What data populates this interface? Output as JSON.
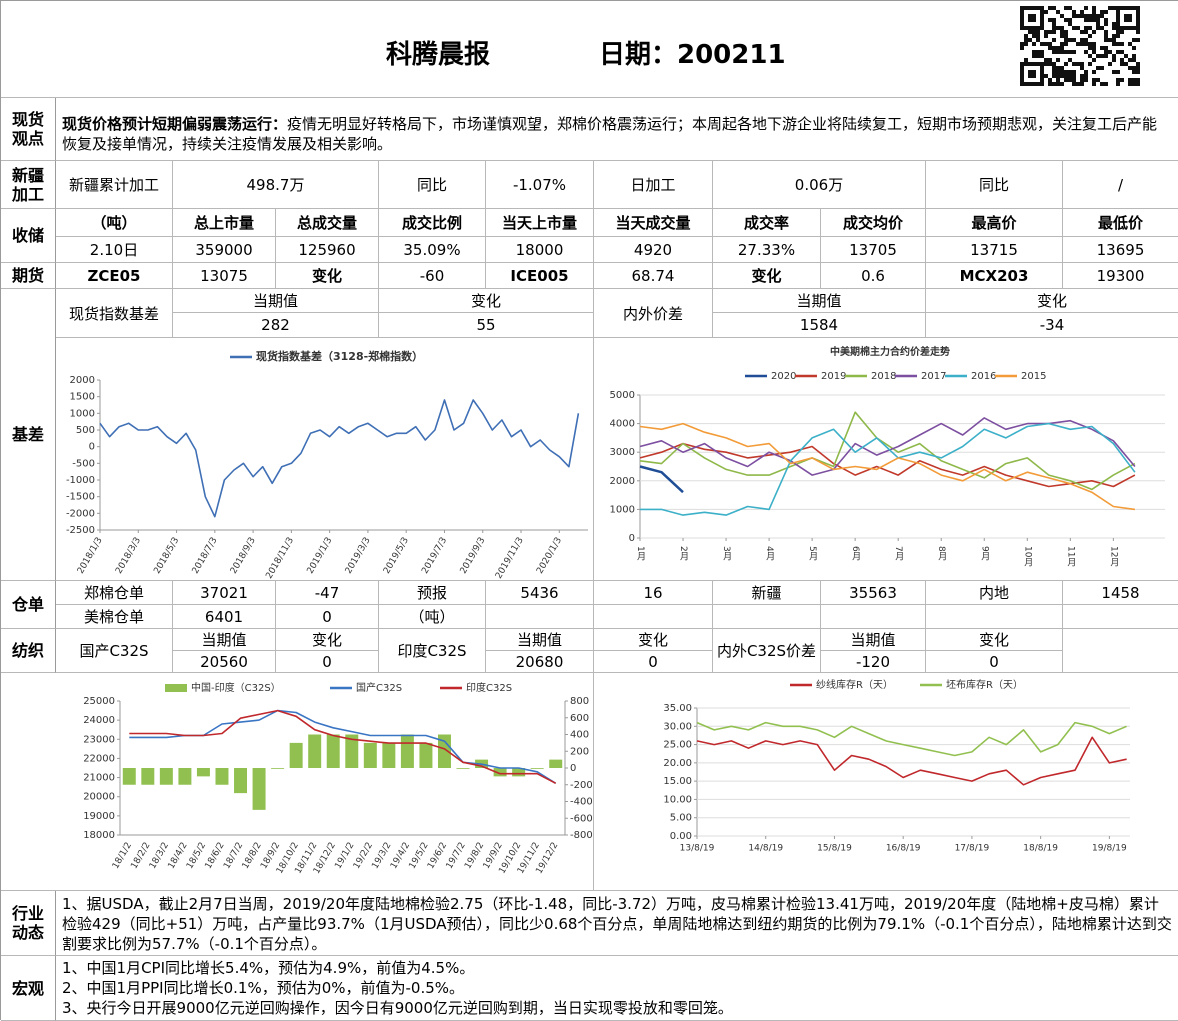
{
  "header": {
    "title": "科腾晨报",
    "date": "日期：200211"
  },
  "spot_view": {
    "label": "现货观点",
    "headline": "现货价格预计短期偏弱震荡运行：",
    "text": "疫情无明显好转格局下，市场谨慎观望，郑棉价格震荡运行；本周起各地下游企业将陆续复工，短期市场预期悲观，关注复工后产能恢复及接单情况，持续关注疫情发展及相关影响。"
  },
  "xinjiang": {
    "label": "新疆加工",
    "cells": [
      "新疆累计加工",
      "498.7万",
      "同比",
      "-1.07%",
      "日加工",
      "0.06万",
      "同比",
      "/"
    ]
  },
  "reserve": {
    "label": "收储",
    "header": [
      "（吨）",
      "总上市量",
      "总成交量",
      "成交比例",
      "当天上市量",
      "当天成交量",
      "成交率",
      "成交均价",
      "最高价",
      "最低价"
    ],
    "row": [
      "2.10日",
      "359000",
      "125960",
      "35.09%",
      "18000",
      "4920",
      "27.33%",
      "13705",
      "13715",
      "13695"
    ]
  },
  "futures": {
    "label": "期货",
    "cells": [
      "ZCE05",
      "13075",
      "变化",
      "-60",
      "ICE005",
      "68.74",
      "变化",
      "0.6",
      "MCX203",
      "19300"
    ]
  },
  "basis": {
    "label": "基差",
    "spot_basis": "现货指数基差",
    "spot_current": "当期值",
    "spot_value": "282",
    "spot_change": "变化",
    "spot_change_value": "55",
    "inner_outer": "内外价差",
    "io_current": "当期值",
    "io_value": "1584",
    "io_change": "变化",
    "io_change_value": "-34"
  },
  "warehouse": {
    "label": "仓单",
    "rows": [
      [
        "郑棉仓单",
        "37021",
        "-47",
        "预报",
        "5436",
        "16",
        "新疆",
        "35563",
        "内地",
        "1458"
      ],
      [
        "美棉仓单",
        "6401",
        "0",
        "（吨）"
      ]
    ]
  },
  "textile": {
    "label": "纺织",
    "cells": [
      "国产C32S",
      "当期值",
      "20560",
      "变化",
      "0",
      "印度C32S",
      "当期值",
      "20680",
      "变化",
      "0",
      "内外C32S价差",
      "当期值",
      "-120",
      "变化",
      "0"
    ]
  },
  "industry": {
    "label": "行业动态",
    "text": "1、据USDA，截止2月7日当周，2019/20年度陆地棉检验2.75（环比-1.48，同比-3.72）万吨，皮马棉累计检验13.41万吨，2019/20年度（陆地棉+皮马棉）累计检验429（同比+51）万吨，占产量比93.7%（1月USDA预估），同比少0.68个百分点，单周陆地棉达到纽约期货的比例为79.1%（-0.1个百分点），陆地棉累计达到交割要求比例为57.7%（-0.1个百分点）。"
  },
  "macro": {
    "label": "宏观",
    "items": [
      "1、中国1月CPI同比增长5.4%，预估为4.9%，前值为4.5%。",
      "2、中国1月PPI同比增长0.1%，预估为0%，前值为-0.5%。",
      "3、央行今日开展9000亿元逆回购操作，因今日有9000亿元逆回购到期，当日实现零投放和零回笼。"
    ]
  },
  "chart_data": [
    {
      "type": "line",
      "grid": false,
      "x": [
        0,
        0.5,
        1,
        1.5,
        2,
        2.5,
        3,
        3.5,
        4,
        4.5,
        5,
        5.5,
        6,
        6.5,
        7,
        7.5,
        8,
        8.5,
        9,
        9.5,
        10,
        10.5,
        11,
        11.5,
        12,
        12.5,
        13,
        13.5,
        14,
        14.5,
        15,
        15.5,
        16,
        16.5,
        17,
        17.5,
        18,
        18.5,
        19,
        19.5,
        20,
        20.5,
        21,
        21.5,
        22,
        22.5,
        23,
        23.5,
        24,
        24.5,
        25
      ],
      "series": [
        {
          "name": "现货指数基差（3128-郑棉指数）",
          "color": "#3f6fb5",
          "values": [
            700,
            300,
            600,
            700,
            500,
            500,
            600,
            300,
            100,
            400,
            -100,
            -1500,
            -2100,
            -1000,
            -700,
            -500,
            -900,
            -600,
            -1100,
            -600,
            -500,
            -200,
            400,
            500,
            300,
            600,
            400,
            600,
            700,
            500,
            300,
            400,
            400,
            600,
            200,
            500,
            1400,
            500,
            700,
            1400,
            1000,
            500,
            800,
            300,
            500,
            0,
            200,
            -100,
            -300,
            -600,
            1000
          ]
        }
      ],
      "xlim": [
        0,
        25.5
      ],
      "xticks": [
        {
          "value": 0,
          "label": "2018/1/3"
        },
        {
          "value": 2,
          "label": "2018/3/3"
        },
        {
          "value": 4,
          "label": "2018/5/3"
        },
        {
          "value": 6,
          "label": "2018/7/3"
        },
        {
          "value": 8,
          "label": "2018/9/3"
        },
        {
          "value": 10,
          "label": "2018/11/3"
        },
        {
          "value": 12,
          "label": "2019/1/3"
        },
        {
          "value": 14,
          "label": "2019/3/3"
        },
        {
          "value": 16,
          "label": "2019/5/3"
        },
        {
          "value": 18,
          "label": "2019/7/3"
        },
        {
          "value": 20,
          "label": "2019/9/3"
        },
        {
          "value": 22,
          "label": "2019/11/3"
        },
        {
          "value": 24,
          "label": "2020/1/3"
        }
      ],
      "ylim": [
        -2500,
        2000
      ],
      "yticks": [
        -2500,
        -2000,
        -1500,
        -1000,
        -500,
        0,
        500,
        1000,
        1500,
        2000
      ]
    },
    {
      "type": "line",
      "title": "中美期棉主力合约价差走势",
      "grid": true,
      "x": [
        1,
        1.5,
        2,
        2.5,
        3,
        3.5,
        4,
        4.5,
        5,
        5.5,
        6,
        6.5,
        7,
        7.5,
        8,
        8.5,
        9,
        9.5,
        10,
        10.5,
        11,
        11.5,
        12,
        12.5
      ],
      "series": [
        {
          "name": "2020",
          "color": "#1f4e96",
          "values": [
            2500,
            2300,
            1600,
            null,
            null,
            null,
            null,
            null,
            null,
            null,
            null,
            null,
            null,
            null,
            null,
            null,
            null,
            null,
            null,
            null,
            null,
            null,
            null,
            null
          ]
        },
        {
          "name": "2019",
          "color": "#c0392b",
          "values": [
            2800,
            3000,
            3300,
            3100,
            3000,
            2800,
            2900,
            3000,
            3200,
            2600,
            2200,
            2500,
            2200,
            2700,
            2400,
            2200,
            2500,
            2200,
            2000,
            1800,
            1900,
            2000,
            1800,
            2200
          ]
        },
        {
          "name": "2018",
          "color": "#8fb84a",
          "values": [
            2700,
            2600,
            3300,
            2800,
            2400,
            2200,
            2200,
            2500,
            2800,
            2500,
            4400,
            3500,
            3000,
            3300,
            2700,
            2400,
            2100,
            2600,
            2800,
            2200,
            2000,
            1700,
            2200,
            2600
          ]
        },
        {
          "name": "2017",
          "color": "#7d4fa0",
          "values": [
            3200,
            3400,
            3000,
            3300,
            2800,
            2500,
            3000,
            2700,
            2200,
            2400,
            3300,
            2900,
            3200,
            3600,
            4000,
            3600,
            4200,
            3800,
            4000,
            4000,
            4100,
            3800,
            3400,
            2500
          ]
        },
        {
          "name": "2016",
          "color": "#3cb0c8",
          "values": [
            1000,
            1000,
            800,
            900,
            800,
            1100,
            1000,
            2700,
            3500,
            3800,
            3000,
            3500,
            2800,
            3000,
            2800,
            3200,
            3800,
            3500,
            3900,
            4000,
            3800,
            3900,
            3300,
            2300
          ]
        },
        {
          "name": "2015",
          "color": "#f29b38",
          "values": [
            3900,
            3800,
            4000,
            3700,
            3500,
            3200,
            3300,
            2600,
            2800,
            2400,
            2500,
            2400,
            2800,
            2600,
            2200,
            2000,
            2400,
            2000,
            2300,
            2100,
            1900,
            1600,
            1100,
            1000
          ]
        }
      ],
      "xlim": [
        1,
        13.2
      ],
      "xticks": [
        {
          "value": 1,
          "label": "1月"
        },
        {
          "value": 2,
          "label": "2月"
        },
        {
          "value": 3,
          "label": "3月"
        },
        {
          "value": 4,
          "label": "4月"
        },
        {
          "value": 5,
          "label": "5月"
        },
        {
          "value": 6,
          "label": "6月"
        },
        {
          "value": 7,
          "label": "7月"
        },
        {
          "value": 8,
          "label": "8月"
        },
        {
          "value": 9,
          "label": "9月"
        },
        {
          "value": 10,
          "label": "10月"
        },
        {
          "value": 11,
          "label": "11月"
        },
        {
          "value": 12,
          "label": "12月"
        }
      ],
      "ylim": [
        0,
        5000
      ],
      "yticks": [
        0,
        1000,
        2000,
        3000,
        4000,
        5000
      ]
    },
    {
      "type": "bar",
      "grid": false,
      "categories": [
        "18/1/2",
        "18/2/2",
        "18/3/2",
        "18/4/2",
        "18/5/2",
        "18/6/2",
        "18/7/2",
        "18/8/2",
        "18/9/2",
        "18/10/2",
        "18/11/2",
        "18/12/2",
        "19/1/2",
        "19/2/2",
        "19/3/2",
        "19/4/2",
        "19/5/2",
        "19/6/2",
        "19/7/2",
        "19/8/2",
        "19/9/2",
        "19/10/2",
        "19/11/2",
        "19/12/2"
      ],
      "series": [
        {
          "name": "中国-印度（C32S）",
          "type": "bar",
          "axis": "y2",
          "color": "#92c050",
          "values": [
            -200,
            -200,
            -200,
            -200,
            -100,
            -200,
            -300,
            -500,
            0,
            300,
            400,
            400,
            400,
            300,
            300,
            400,
            300,
            400,
            0,
            100,
            -100,
            -100,
            0,
            100
          ]
        },
        {
          "name": "国产C32S",
          "type": "line",
          "color": "#3a75c4",
          "values": [
            23100,
            23100,
            23100,
            23200,
            23200,
            23800,
            23900,
            24000,
            24500,
            24400,
            23900,
            23600,
            23400,
            23200,
            23200,
            23200,
            23200,
            22900,
            21800,
            21700,
            21500,
            21500,
            21300,
            20700
          ]
        },
        {
          "name": "印度C32S",
          "type": "line",
          "color": "#c0282c",
          "values": [
            23300,
            23300,
            23300,
            23200,
            23200,
            23300,
            24100,
            24300,
            24500,
            24200,
            23500,
            23200,
            23000,
            22900,
            22800,
            22800,
            22800,
            22500,
            21800,
            21600,
            21200,
            21200,
            21200,
            20700
          ]
        }
      ],
      "ylim": [
        18000,
        25000
      ],
      "yticks": [
        18000,
        19000,
        20000,
        21000,
        22000,
        23000,
        24000,
        25000
      ],
      "y2lim": [
        -800,
        800
      ],
      "y2ticks": [
        -800,
        -600,
        -400,
        -200,
        0,
        200,
        400,
        600,
        800
      ]
    },
    {
      "type": "line",
      "grid": true,
      "x": [
        0,
        0.25,
        0.5,
        0.75,
        1,
        1.25,
        1.5,
        1.75,
        2,
        2.25,
        2.5,
        2.75,
        3,
        3.25,
        3.5,
        3.75,
        4,
        4.25,
        4.5,
        4.75,
        5,
        5.25,
        5.5,
        5.75,
        6,
        6.25
      ],
      "series": [
        {
          "name": "纱线库存R（天）",
          "color": "#c0282c",
          "values": [
            26,
            25,
            26,
            24,
            26,
            25,
            26,
            25,
            18,
            22,
            21,
            19,
            16,
            18,
            17,
            16,
            15,
            17,
            18,
            14,
            16,
            17,
            18,
            27,
            20,
            21
          ]
        },
        {
          "name": "坯布库存R（天）",
          "color": "#92c050",
          "values": [
            31,
            29,
            30,
            29,
            31,
            30,
            30,
            29,
            27,
            30,
            28,
            26,
            25,
            24,
            23,
            22,
            23,
            27,
            25,
            29,
            23,
            25,
            31,
            30,
            28,
            30
          ]
        }
      ],
      "xlim": [
        0,
        6.3
      ],
      "xticks": [
        {
          "value": 0,
          "label": "13/8/19"
        },
        {
          "value": 1,
          "label": "14/8/19"
        },
        {
          "value": 2,
          "label": "15/8/19"
        },
        {
          "value": 3,
          "label": "16/8/19"
        },
        {
          "value": 4,
          "label": "17/8/19"
        },
        {
          "value": 5,
          "label": "18/8/19"
        },
        {
          "value": 6,
          "label": "19/8/19"
        }
      ],
      "ylim": [
        0,
        35
      ],
      "yticks": [
        {
          "value": 0,
          "label": "0.00"
        },
        {
          "value": 5,
          "label": "5.00"
        },
        {
          "value": 10,
          "label": "10.00"
        },
        {
          "value": 15,
          "label": "15.00"
        },
        {
          "value": 20,
          "label": "20.00"
        },
        {
          "value": 25,
          "label": "25.00"
        },
        {
          "value": 30,
          "label": "30.00"
        },
        {
          "value": 35,
          "label": "35.00"
        }
      ]
    }
  ]
}
